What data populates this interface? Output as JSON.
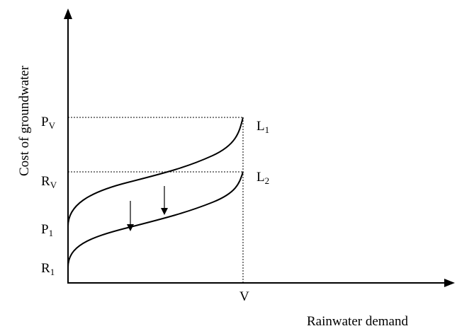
{
  "diagram": {
    "y_axis_title": "Cost of groundwater",
    "x_axis_title": "Rainwater demand",
    "y_tick_labels": [
      {
        "main": "P",
        "sub": "V"
      },
      {
        "main": "R",
        "sub": "V"
      },
      {
        "main": "P",
        "sub": "1"
      },
      {
        "main": "R",
        "sub": "1"
      }
    ],
    "x_tick_label": "V",
    "curves": [
      {
        "main": "L",
        "sub": "1"
      },
      {
        "main": "L",
        "sub": "2"
      }
    ],
    "shift_direction": "downward",
    "colors": {
      "ink": "#000000",
      "background": "#ffffff"
    }
  }
}
